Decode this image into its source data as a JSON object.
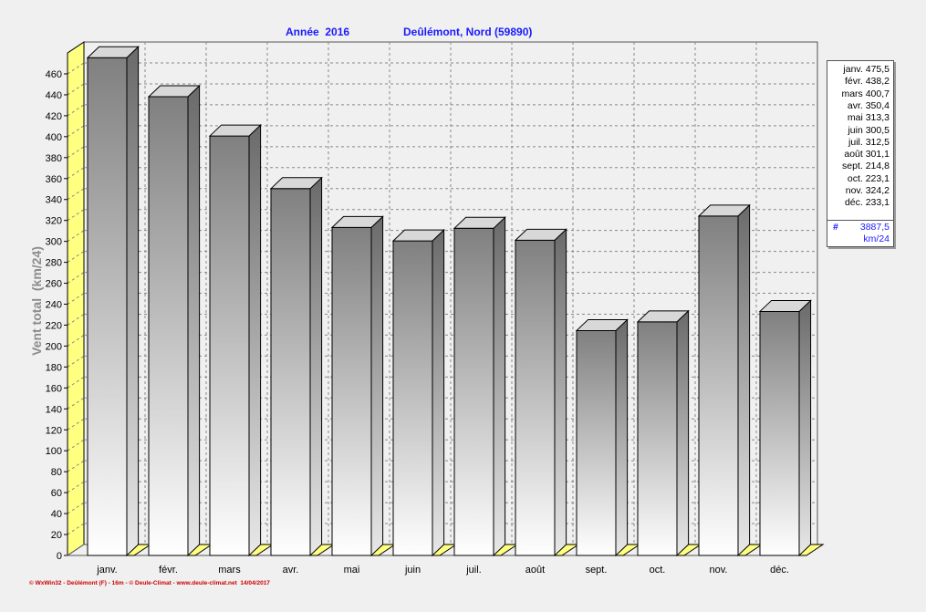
{
  "chart_data": {
    "type": "bar",
    "title_year": "Année  2016",
    "title_station": "Deûlémont, Nord (59890)",
    "xlabel": "",
    "ylabel": "Vent total  (km/24)",
    "ylim": [
      0,
      480
    ],
    "yticks": [
      0,
      20,
      40,
      60,
      80,
      100,
      120,
      140,
      160,
      180,
      200,
      220,
      240,
      260,
      280,
      300,
      320,
      340,
      360,
      380,
      400,
      420,
      440,
      460
    ],
    "grid": true,
    "categories": [
      "janv.",
      "févr.",
      "mars",
      "avr.",
      "mai",
      "juin",
      "juil.",
      "août",
      "sept.",
      "oct.",
      "nov.",
      "déc."
    ],
    "values": [
      475.5,
      438.2,
      400.7,
      350.4,
      313.3,
      300.5,
      312.5,
      301.1,
      214.8,
      223.1,
      324.2,
      233.1
    ],
    "legend_values": [
      "475,5",
      "438,2",
      "400,7",
      "350,4",
      "313,3",
      "300,5",
      "312,5",
      "301,1",
      "214,8",
      "223,1",
      "324,2",
      "233,1"
    ],
    "legend_position": "right",
    "total_symbol": "#",
    "total": "3887,5",
    "total_unit": "km/24",
    "colors": {
      "bar_top": "#808080",
      "bar_bottom": "#ffffff",
      "title": "#1a1aff",
      "floor": "#ffff80",
      "footer": "#cc0000"
    }
  },
  "footer": "© WxWin32 - Deûlémont (F) - 16m - © Deule-Climat - www.deule-climat.net  14/04/2017"
}
